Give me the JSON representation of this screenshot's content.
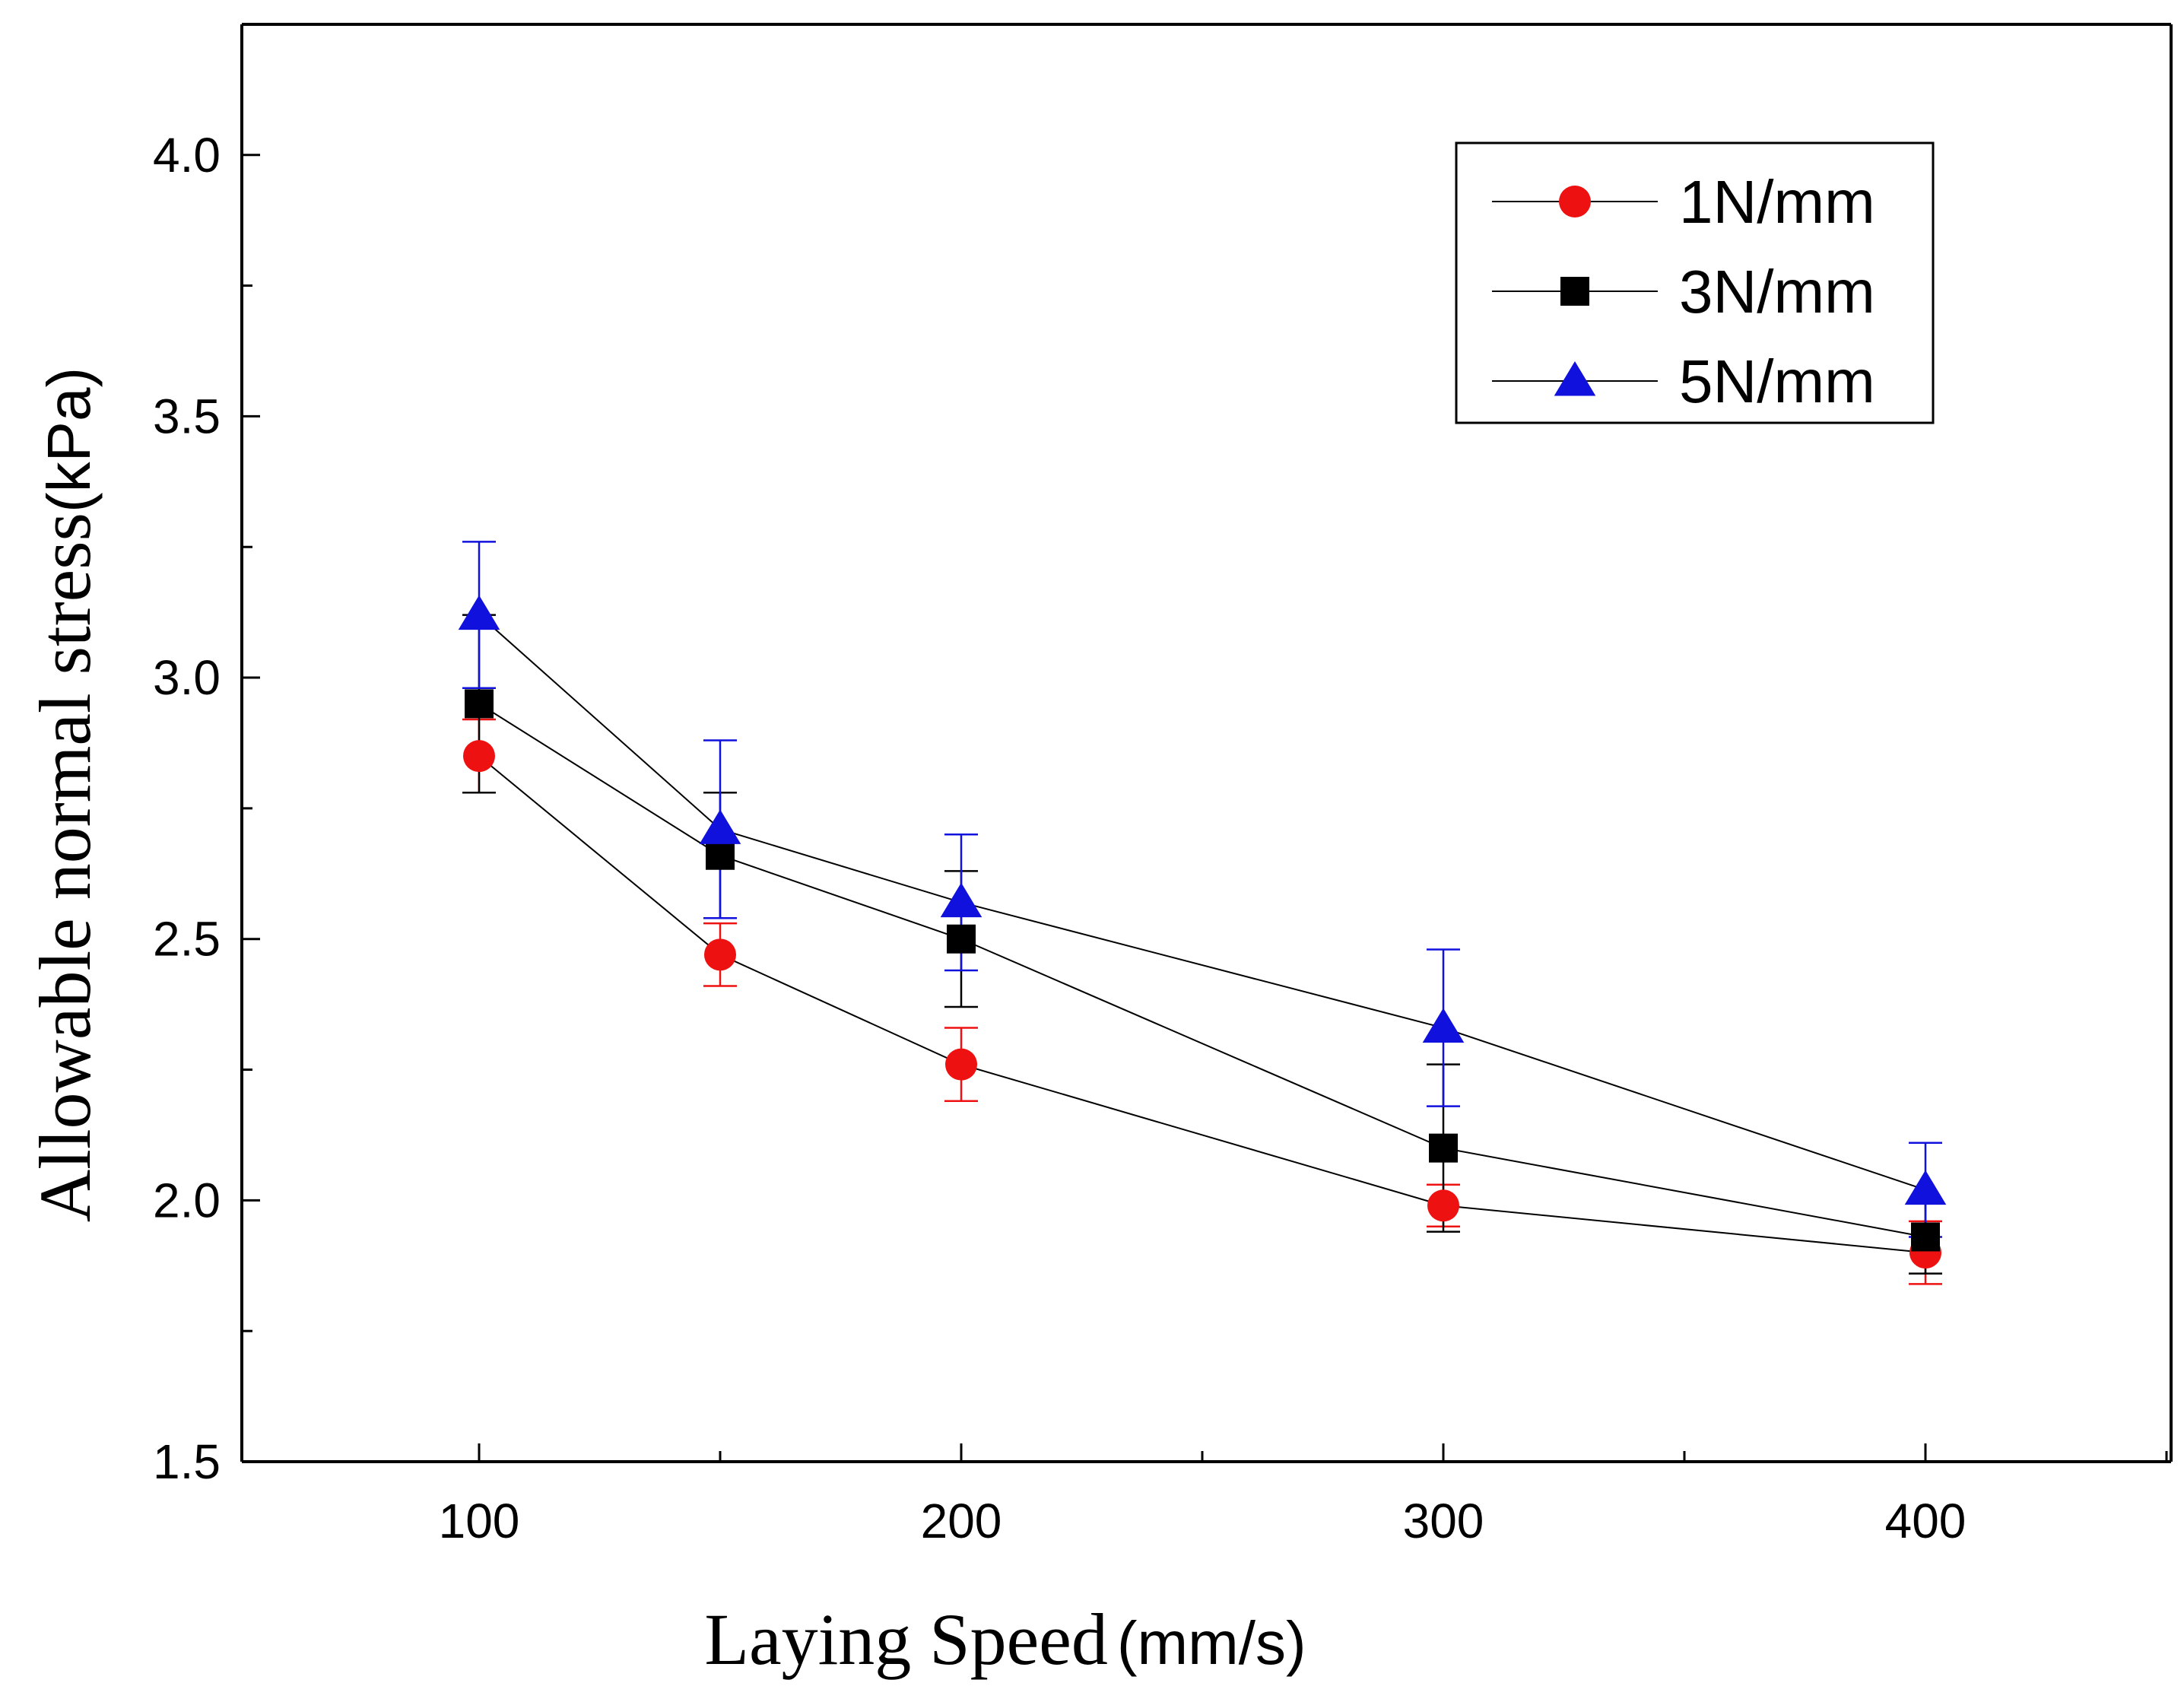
{
  "chart_data": {
    "type": "line",
    "title": "",
    "xlabel": "Laying Speed",
    "xlabel_unit": "(mm/s)",
    "ylabel": "Allowable normal stress",
    "ylabel_unit": "(kPa)",
    "xlim": [
      50,
      450
    ],
    "ylim": [
      1.5,
      4.25
    ],
    "x_ticks": [
      100,
      200,
      300,
      400
    ],
    "x_tick_labels": [
      "100",
      "200",
      "300",
      "400"
    ],
    "y_ticks": [
      1.5,
      2.0,
      2.5,
      3.0,
      3.5,
      4.0
    ],
    "y_tick_labels": [
      "1.5",
      "2.0",
      "2.5",
      "3.0",
      "3.5",
      "4.0"
    ],
    "grid": false,
    "legend_position": "top-right",
    "x": [
      100,
      150,
      200,
      300,
      400
    ],
    "series": [
      {
        "name": "1N/mm",
        "marker": "circle",
        "color": "#ee1111",
        "values": [
          2.85,
          2.47,
          2.26,
          1.99,
          1.9
        ],
        "errors": [
          0.07,
          0.06,
          0.07,
          0.04,
          0.06
        ]
      },
      {
        "name": "3N/mm",
        "marker": "square",
        "color": "#000000",
        "values": [
          2.95,
          2.66,
          2.5,
          2.1,
          1.93
        ],
        "errors": [
          0.17,
          0.12,
          0.13,
          0.16,
          0.07
        ]
      },
      {
        "name": "5N/mm",
        "marker": "triangle",
        "color": "#1111dd",
        "values": [
          3.12,
          2.71,
          2.57,
          2.33,
          2.02
        ],
        "errors": [
          0.14,
          0.17,
          0.13,
          0.15,
          0.09
        ]
      }
    ]
  }
}
